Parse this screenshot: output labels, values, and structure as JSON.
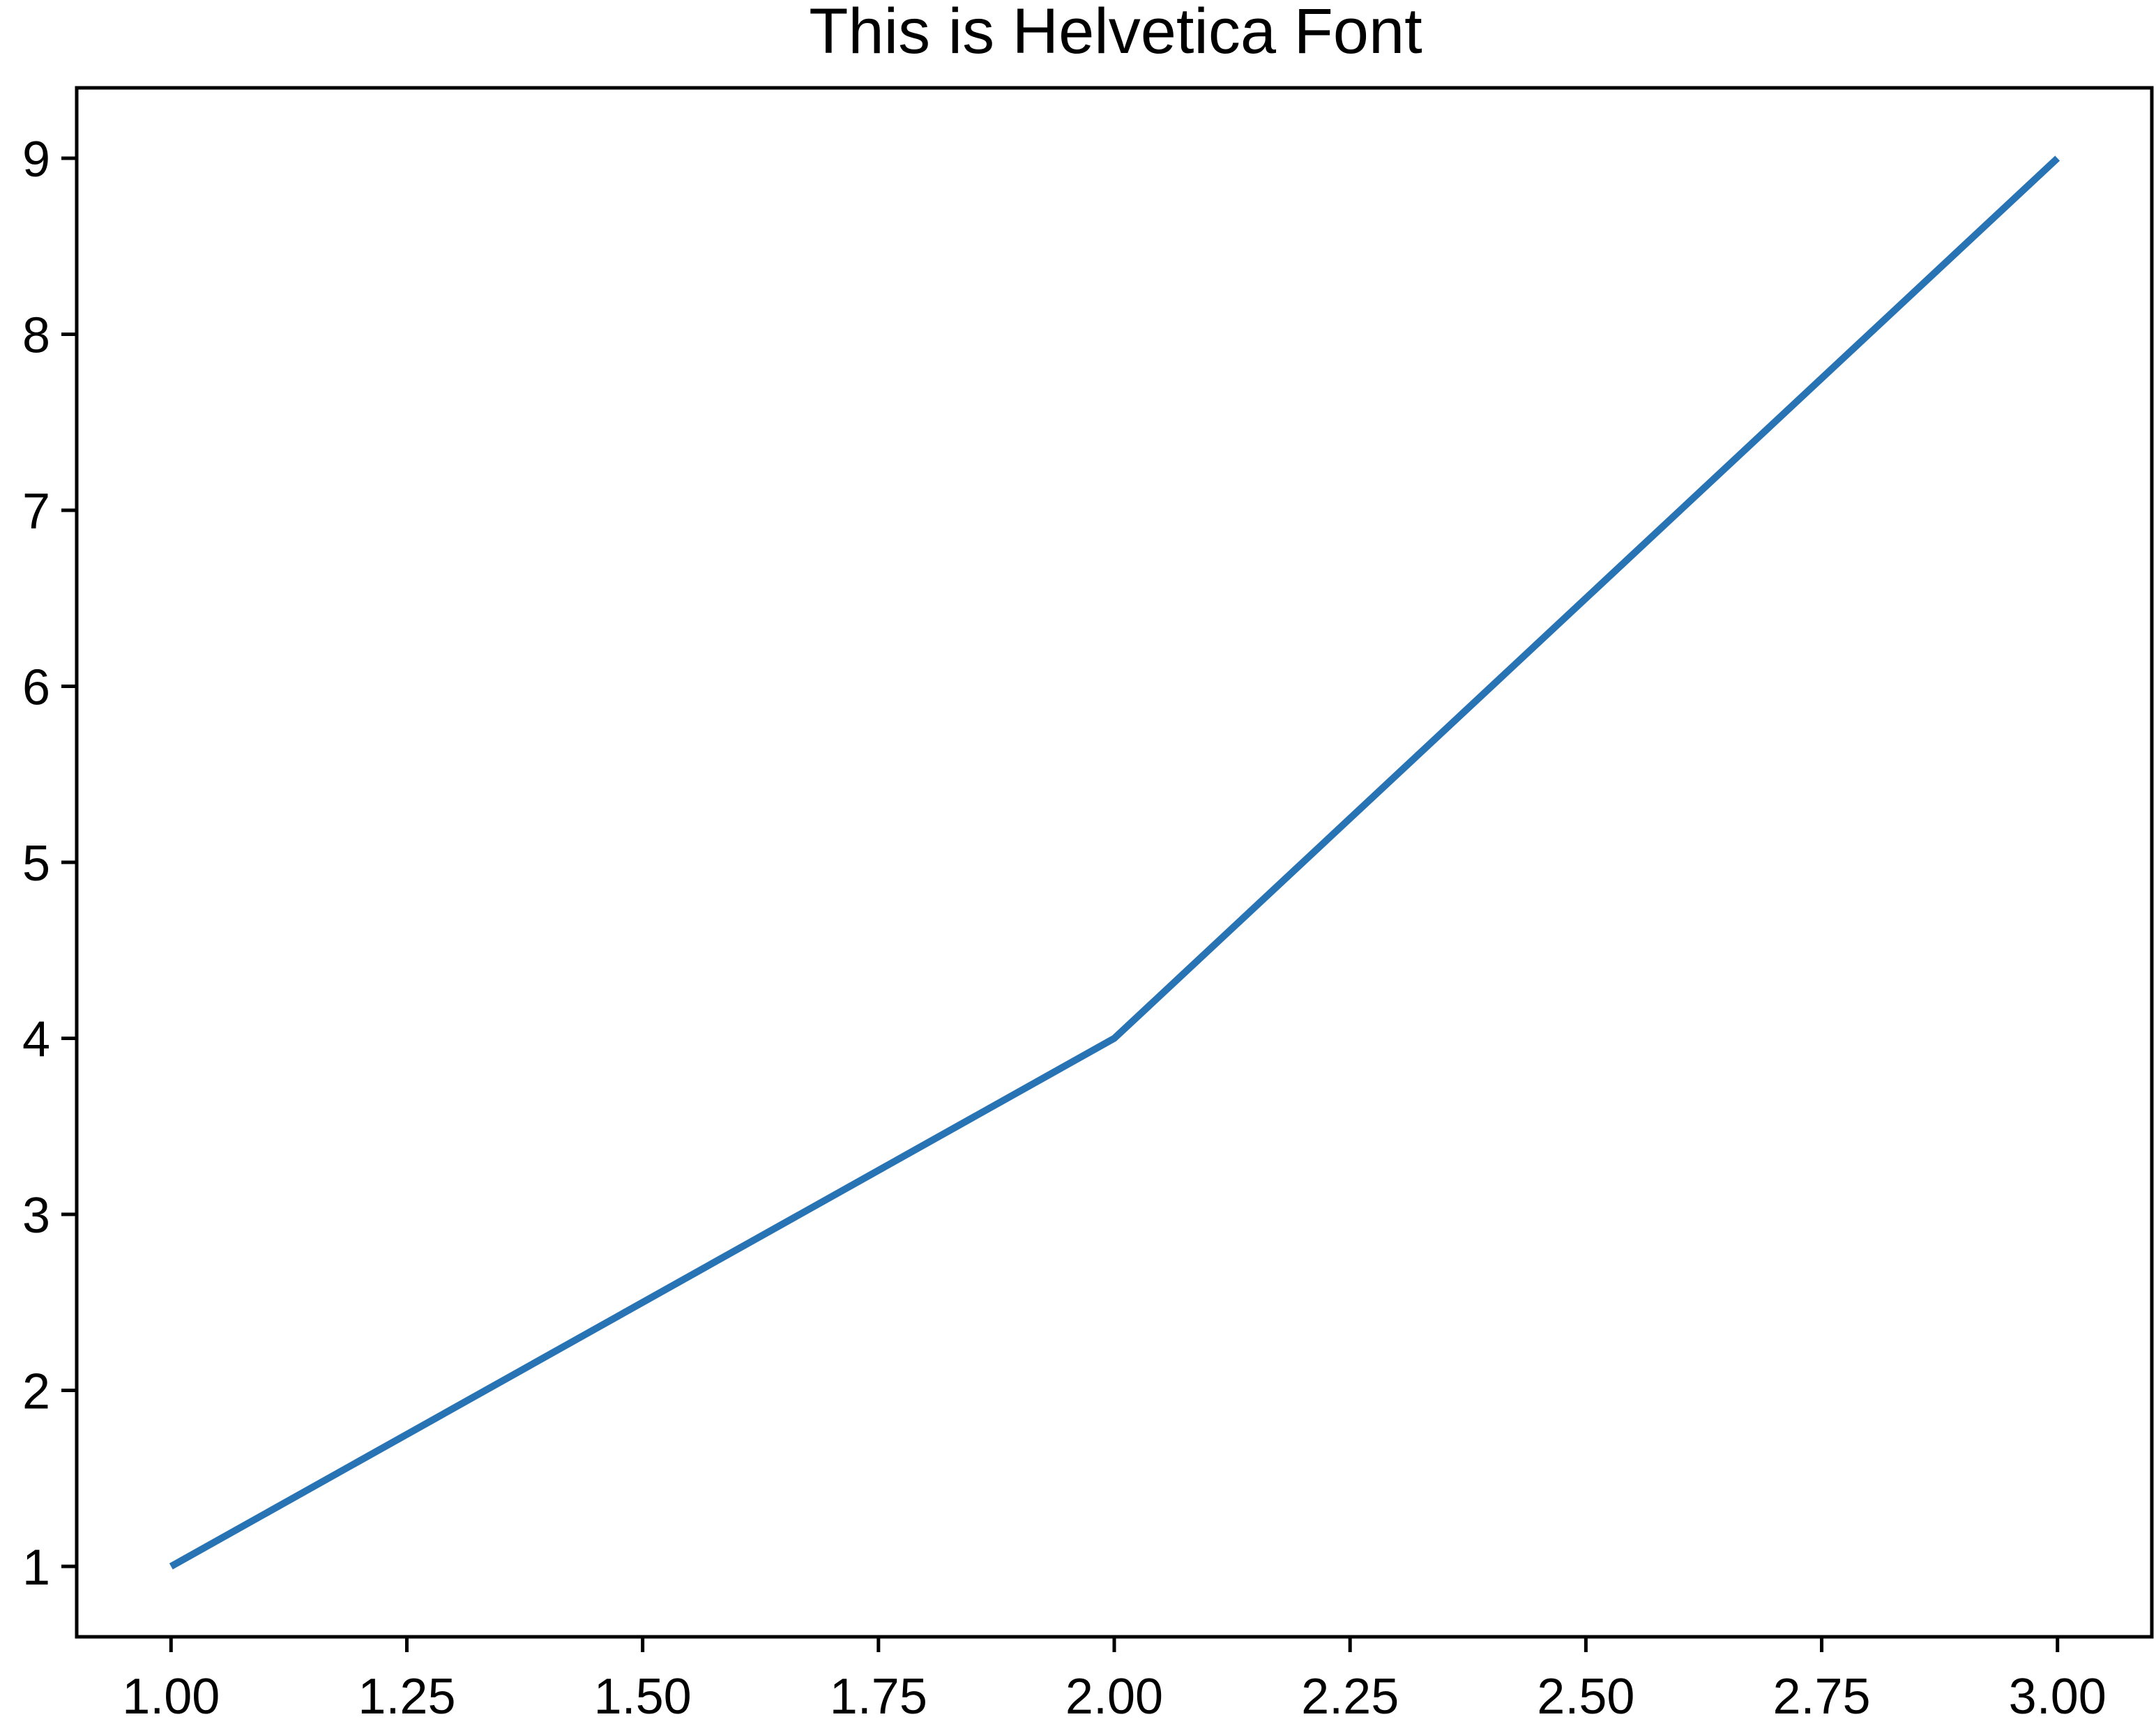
{
  "chart_data": {
    "type": "line",
    "title": "This is Helvetica Font",
    "xlabel": "",
    "ylabel": "",
    "x_ticks": [
      "1.00",
      "1.25",
      "1.50",
      "1.75",
      "2.00",
      "2.25",
      "2.50",
      "2.75",
      "3.00"
    ],
    "y_ticks": [
      "1",
      "2",
      "3",
      "4",
      "5",
      "6",
      "7",
      "8",
      "9"
    ],
    "xlim": [
      0.9,
      3.1
    ],
    "ylim": [
      0.6,
      9.4
    ],
    "grid": false,
    "series": [
      {
        "x": [
          1,
          2,
          3
        ],
        "y": [
          1,
          4,
          9
        ],
        "color": "#2873b4"
      }
    ]
  }
}
